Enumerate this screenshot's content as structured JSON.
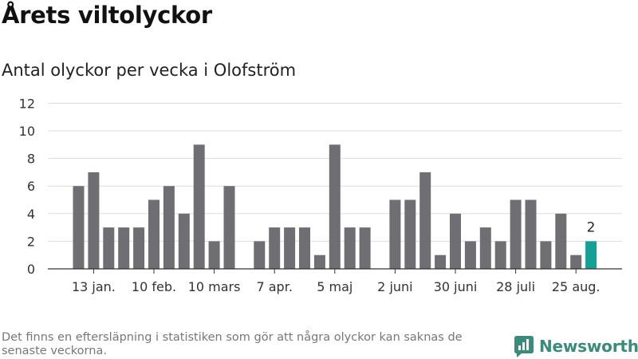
{
  "header": {
    "title": "Årets viltolyckor",
    "subtitle": "Antal olyckor per vecka i Olofström"
  },
  "footer": {
    "note": "Det finns en eftersläpning i statistiken som gör att några olyckor kan saknas de senaste veckorna.",
    "brand": "Newsworthy"
  },
  "colors": {
    "bar": "#6f6e73",
    "highlight": "#14a195",
    "grid": "#dddddd",
    "brand": "#3c8a7c"
  },
  "chart_data": {
    "type": "bar",
    "title": "Antal olyckor per vecka i Olofström",
    "xlabel": "",
    "ylabel": "",
    "x": [
      1,
      2,
      3,
      4,
      5,
      6,
      7,
      8,
      9,
      10,
      11,
      12,
      13,
      14,
      15,
      16,
      17,
      18,
      19,
      20,
      21,
      22,
      23,
      24,
      25,
      26,
      27,
      28,
      29,
      30,
      31,
      32,
      33,
      34,
      35
    ],
    "values": [
      6,
      7,
      3,
      3,
      3,
      5,
      6,
      4,
      9,
      2,
      6,
      0,
      2,
      3,
      3,
      3,
      1,
      9,
      3,
      3,
      0,
      5,
      5,
      7,
      1,
      4,
      2,
      3,
      2,
      5,
      5,
      2,
      4,
      1,
      2
    ],
    "highlight_index": 34,
    "data_labels": [
      {
        "index": 34,
        "text": "2"
      }
    ],
    "yticks": [
      0,
      2,
      4,
      6,
      8,
      10,
      12
    ],
    "ylim": [
      0,
      12
    ],
    "xtick_labels": [
      {
        "x": 2,
        "label": "13 jan."
      },
      {
        "x": 6,
        "label": "10 feb."
      },
      {
        "x": 10,
        "label": "10 mars"
      },
      {
        "x": 14,
        "label": "7 apr."
      },
      {
        "x": 18,
        "label": "5 maj"
      },
      {
        "x": 22,
        "label": "2 juni"
      },
      {
        "x": 26,
        "label": "30 juni"
      },
      {
        "x": 30,
        "label": "28 juli"
      },
      {
        "x": 34,
        "label": "25 aug."
      }
    ],
    "grid": "horizontal"
  }
}
